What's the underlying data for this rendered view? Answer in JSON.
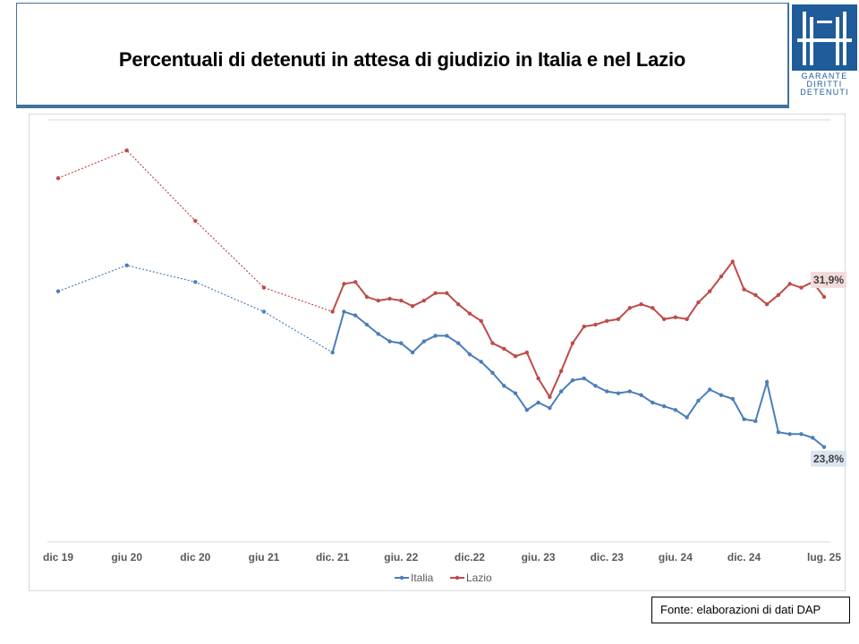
{
  "title": "Percentuali di detenuti in attesa di giudizio in Italia e nel Lazio",
  "logo": {
    "lines": [
      "GARANTE",
      "DIRITTI",
      "DETENUTI"
    ],
    "color": "#1f5c99"
  },
  "source": "Fonte: elaborazioni di dati DAP",
  "colors": {
    "italia": "#4a7ebb",
    "lazio": "#be4b48",
    "grid": "#d9d9d9",
    "axis_text": "#595959"
  },
  "chart_data": {
    "type": "line",
    "title": "Percentuali di detenuti in attesa di giudizio in Italia e nel Lazio",
    "xlabel": "",
    "ylabel": "",
    "tick_labels": [
      "dic 19",
      "giu 20",
      "dic 20",
      "giu 21",
      "dic. 21",
      "giu. 22",
      "dic.22",
      "giu. 23",
      "dic. 23",
      "giu. 24",
      "dic. 24",
      "lug. 25"
    ],
    "legend": {
      "position": "bottom",
      "entries": [
        "Italia",
        "Lazio"
      ]
    },
    "grid": true,
    "note": "y axis unlabeled; only the final values are printed",
    "series": [
      {
        "name": "Italia",
        "final_label": "23,8%",
        "points": [
          [
            0,
            32.2
          ],
          [
            6,
            33.6
          ],
          [
            12,
            32.7
          ],
          [
            18,
            31.1
          ],
          [
            24,
            28.9
          ],
          [
            25,
            31.1
          ],
          [
            26,
            30.9
          ],
          [
            27,
            30.4
          ],
          [
            28,
            29.9
          ],
          [
            29,
            29.5
          ],
          [
            30,
            29.4
          ],
          [
            31,
            28.9
          ],
          [
            32,
            29.5
          ],
          [
            33,
            29.8
          ],
          [
            34,
            29.8
          ],
          [
            35,
            29.4
          ],
          [
            36,
            28.8
          ],
          [
            37,
            28.4
          ],
          [
            38,
            27.8
          ],
          [
            39,
            27.1
          ],
          [
            40,
            26.7
          ],
          [
            41,
            25.8
          ],
          [
            42,
            26.2
          ],
          [
            43,
            25.9
          ],
          [
            44,
            26.8
          ],
          [
            45,
            27.4
          ],
          [
            46,
            27.5
          ],
          [
            47,
            27.1
          ],
          [
            48,
            26.8
          ],
          [
            49,
            26.7
          ],
          [
            50,
            26.8
          ],
          [
            51,
            26.6
          ],
          [
            52,
            26.2
          ],
          [
            53,
            26.0
          ],
          [
            54,
            25.8
          ],
          [
            55,
            25.4
          ],
          [
            56,
            26.3
          ],
          [
            57,
            26.9
          ],
          [
            58,
            26.6
          ],
          [
            59,
            26.4
          ],
          [
            60,
            25.3
          ],
          [
            61,
            25.2
          ],
          [
            62,
            27.3
          ],
          [
            63,
            24.6
          ],
          [
            64,
            24.5
          ],
          [
            65,
            24.5
          ],
          [
            66,
            24.3
          ],
          [
            67,
            23.8
          ]
        ]
      },
      {
        "name": "Lazio",
        "final_label": "31,9%",
        "points": [
          [
            0,
            38.3
          ],
          [
            6,
            39.8
          ],
          [
            12,
            36.0
          ],
          [
            18,
            32.4
          ],
          [
            24,
            31.1
          ],
          [
            25,
            32.6
          ],
          [
            26,
            32.7
          ],
          [
            27,
            31.9
          ],
          [
            28,
            31.7
          ],
          [
            29,
            31.8
          ],
          [
            30,
            31.7
          ],
          [
            31,
            31.4
          ],
          [
            32,
            31.7
          ],
          [
            33,
            32.1
          ],
          [
            34,
            32.1
          ],
          [
            35,
            31.5
          ],
          [
            36,
            31.0
          ],
          [
            37,
            30.6
          ],
          [
            38,
            29.4
          ],
          [
            39,
            29.1
          ],
          [
            40,
            28.7
          ],
          [
            41,
            28.9
          ],
          [
            42,
            27.5
          ],
          [
            43,
            26.5
          ],
          [
            44,
            27.9
          ],
          [
            45,
            29.4
          ],
          [
            46,
            30.3
          ],
          [
            47,
            30.4
          ],
          [
            48,
            30.6
          ],
          [
            49,
            30.7
          ],
          [
            50,
            31.3
          ],
          [
            51,
            31.5
          ],
          [
            52,
            31.3
          ],
          [
            53,
            30.7
          ],
          [
            54,
            30.8
          ],
          [
            55,
            30.7
          ],
          [
            56,
            31.6
          ],
          [
            57,
            32.2
          ],
          [
            58,
            33.0
          ],
          [
            59,
            33.8
          ],
          [
            60,
            32.3
          ],
          [
            61,
            32.0
          ],
          [
            62,
            31.5
          ],
          [
            63,
            32.0
          ],
          [
            64,
            32.6
          ],
          [
            65,
            32.4
          ],
          [
            66,
            32.7
          ],
          [
            67,
            31.9
          ]
        ]
      }
    ]
  }
}
